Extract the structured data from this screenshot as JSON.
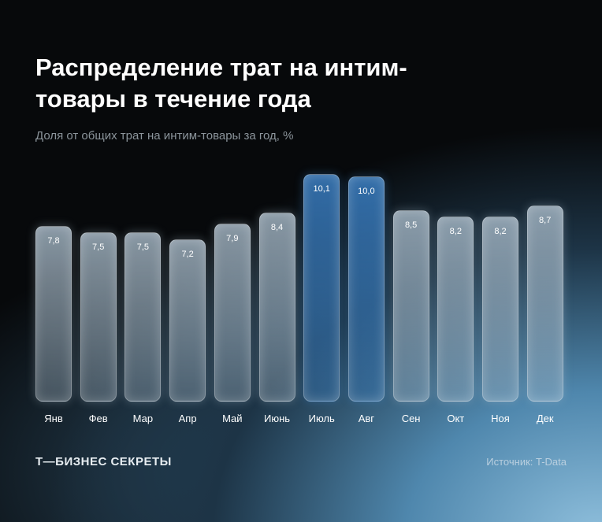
{
  "chart_data": {
    "type": "bar",
    "title": "Распределение трат на интим-товары в течение года",
    "subtitle": "Доля от общих трат на интим-товары за год, %",
    "categories": [
      "Янв",
      "Фев",
      "Мар",
      "Апр",
      "Май",
      "Июнь",
      "Июль",
      "Авг",
      "Сен",
      "Окт",
      "Ноя",
      "Дек"
    ],
    "values": [
      7.8,
      7.5,
      7.5,
      7.2,
      7.9,
      8.4,
      10.1,
      10.0,
      8.5,
      8.2,
      8.2,
      8.7
    ],
    "value_labels": [
      "7,8",
      "7,5",
      "7,5",
      "7,2",
      "7,9",
      "8,4",
      "10,1",
      "10,0",
      "8,5",
      "8,2",
      "8,2",
      "8,7"
    ],
    "colors": [
      "#a9bccb",
      "#a9bccb",
      "#a9bccb",
      "#a9bccb",
      "#a9bccb",
      "#a9bccb",
      "#3d86cf",
      "#3d86cf",
      "#a9bccb",
      "#a9bccb",
      "#a9bccb",
      "#a9bccb"
    ],
    "brand": "Т—БИЗНЕС СЕКРЕТЫ",
    "source": "Источник: T-Data"
  }
}
